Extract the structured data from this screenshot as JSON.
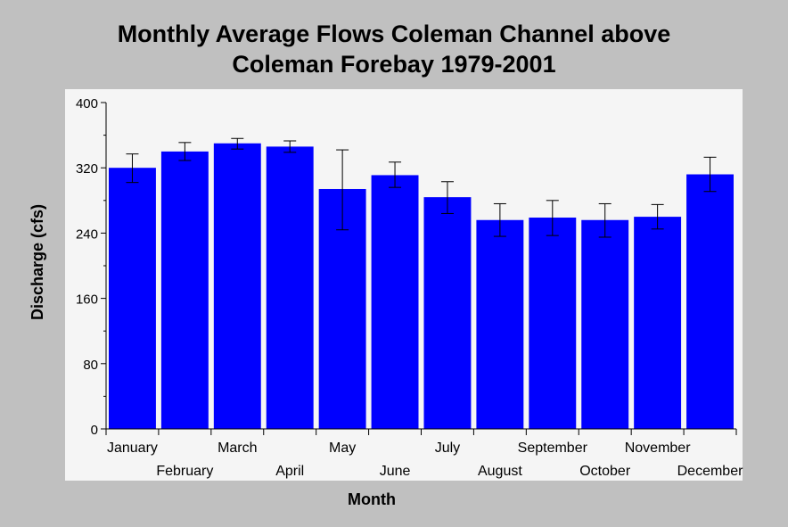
{
  "colors": {
    "background": "#c0c0c0",
    "plot_area": "#f5f5f5",
    "bar": "#0000ff",
    "error_bar": "#000000"
  },
  "chart_data": {
    "type": "bar",
    "title_lines": [
      "Monthly Average Flows Coleman Channel above",
      "Coleman Forebay 1979-2001"
    ],
    "xlabel": "Month",
    "ylabel": "Discharge (cfs)",
    "ylim": [
      0,
      400
    ],
    "y_ticks": [
      0,
      80,
      160,
      240,
      320,
      400
    ],
    "categories": [
      "January",
      "February",
      "March",
      "April",
      "May",
      "June",
      "July",
      "August",
      "September",
      "October",
      "November",
      "December"
    ],
    "values": [
      320,
      340,
      350,
      346,
      294,
      311,
      284,
      256,
      259,
      256,
      260,
      312
    ],
    "error_low": [
      302,
      329,
      343,
      339,
      244,
      296,
      264,
      236,
      237,
      235,
      245,
      291
    ],
    "error_high": [
      337,
      351,
      356,
      353,
      342,
      327,
      303,
      276,
      280,
      276,
      275,
      333
    ],
    "grid": false,
    "legend": "none",
    "error_bars": true
  }
}
